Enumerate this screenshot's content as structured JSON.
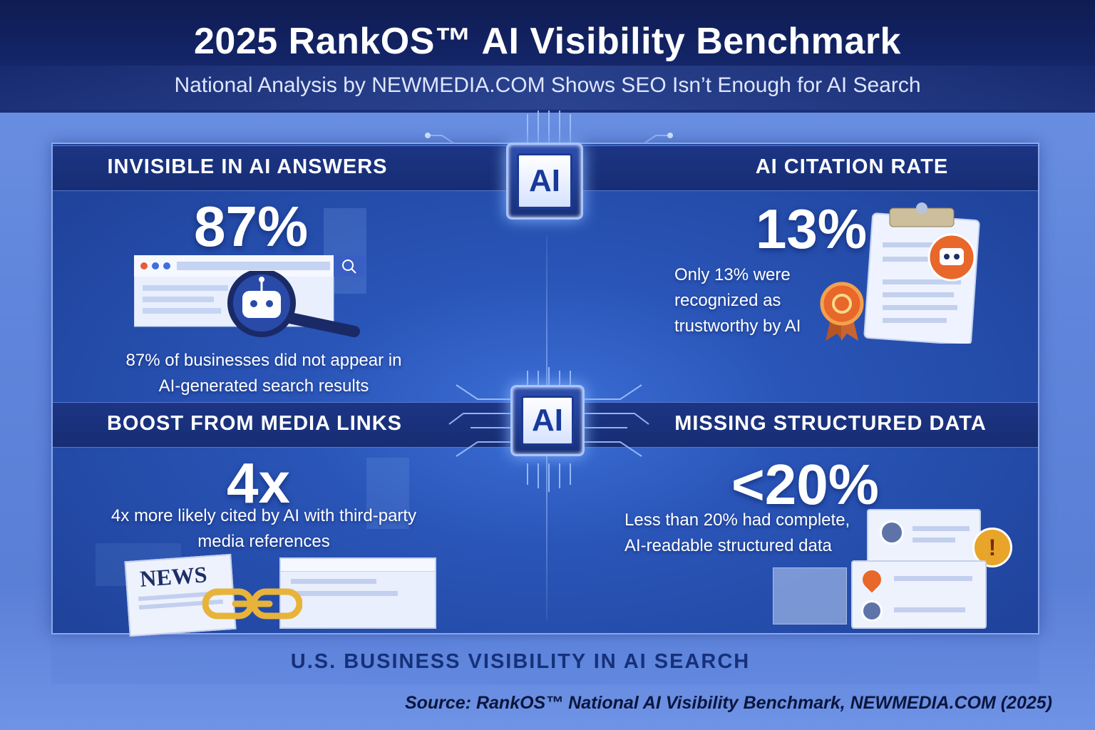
{
  "header": {
    "title": "2025 RankOS™ AI Visibility Benchmark",
    "subtitle": "National Analysis by NEWMEDIA.COM Shows SEO Isn’t Enough for AI Search"
  },
  "chip_label": "AI",
  "sections": {
    "invisible": {
      "title": "INVISIBLE IN AI ANSWERS",
      "stat": "87%",
      "desc_line1": "87% of businesses did not appear in",
      "desc_line2": "AI-generated search results"
    },
    "citation": {
      "title": "AI CITATION RATE",
      "stat": "13%",
      "desc_line1": "Only 13% were",
      "desc_line2": "recognized as",
      "desc_line3": "trustworthy by AI"
    },
    "media": {
      "title": "BOOST FROM MEDIA LINKS",
      "stat": "4x",
      "desc_line1": "4x more likely cited by AI with third-party",
      "desc_line2": "media references",
      "news_label": "NEWS"
    },
    "structured": {
      "title": "MISSING STRUCTURED DATA",
      "stat": "<20%",
      "desc_line1": "Less than 20% had complete,",
      "desc_line2": "AI-readable structured data"
    }
  },
  "footer": {
    "band_title": "U.S. BUSINESS VISIBILITY IN AI SEARCH",
    "source": "Source: RankOS™ National AI Visibility Benchmark, NEWMEDIA.COM (2025)"
  },
  "colors": {
    "header_bg": "#0f1c52",
    "panel_bg": "#2a55b8",
    "accent_orange": "#e8672a",
    "gold": "#e8b339"
  },
  "icons": [
    "browser-window-icon",
    "magnifier-robot-icon",
    "clipboard-icon",
    "robot-badge-icon",
    "award-ribbon-icon",
    "newspaper-icon",
    "chain-link-icon",
    "profile-card-icon",
    "warning-icon",
    "location-pin-icon"
  ]
}
